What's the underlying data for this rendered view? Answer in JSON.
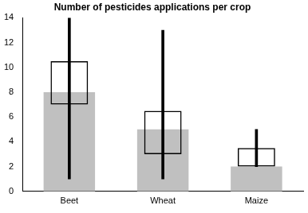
{
  "chart_data": {
    "type": "bar",
    "title": "Number of pesticides applications per crop",
    "categories": [
      "Beet",
      "Wheat",
      "Maize"
    ],
    "values": [
      8,
      5,
      2
    ],
    "color": "#c0c0c0",
    "box_low": [
      7,
      3,
      2
    ],
    "box_high": [
      10.5,
      6.5,
      3.5
    ],
    "whisker_low": [
      1,
      1,
      2
    ],
    "whisker_high": [
      14,
      13,
      5
    ],
    "ylim": [
      0,
      14
    ],
    "yticks": [
      0,
      2,
      4,
      6,
      8,
      10,
      12,
      14
    ],
    "grid": false
  }
}
